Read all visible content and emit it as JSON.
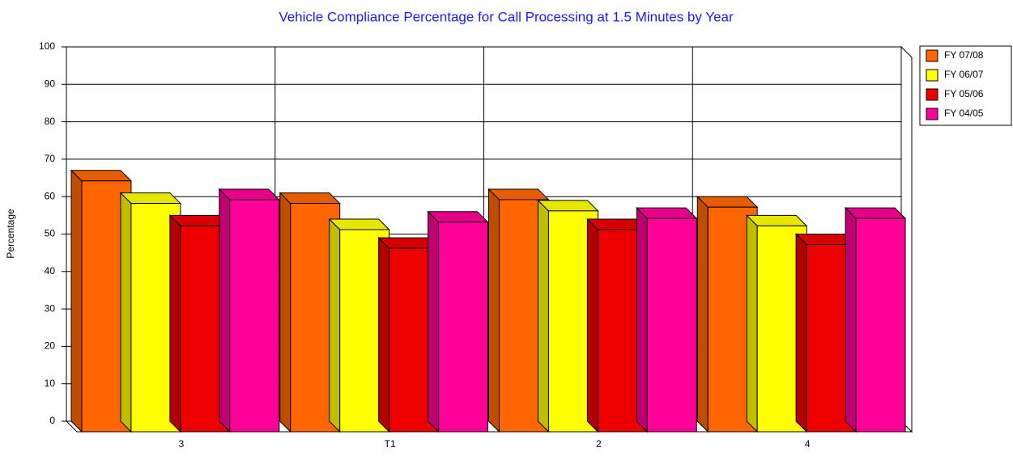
{
  "chart_data": {
    "type": "bar3d",
    "title": "Vehicle Compliance Percentage for Call Processing at 1.5 Minutes by Year",
    "y_label": "Percentage",
    "categories": [
      "3",
      "T1",
      "2",
      "4"
    ],
    "series": [
      {
        "name": "FY 07/08",
        "color": "#ff6600",
        "values": [
          67,
          61,
          62,
          60
        ]
      },
      {
        "name": "FY 06/07",
        "color": "#ffff00",
        "values": [
          61,
          54,
          59,
          55
        ]
      },
      {
        "name": "FY 05/06",
        "color": "#ee0000",
        "values": [
          55,
          49,
          54,
          50
        ]
      },
      {
        "name": "FY 04/05",
        "color": "#ff0099",
        "values": [
          62,
          56,
          57,
          57
        ]
      }
    ],
    "ylim": [
      0,
      100
    ],
    "yticks": [
      0,
      10,
      20,
      30,
      40,
      50,
      60,
      70,
      80,
      90,
      100
    ],
    "grid": true,
    "legend": "right"
  }
}
